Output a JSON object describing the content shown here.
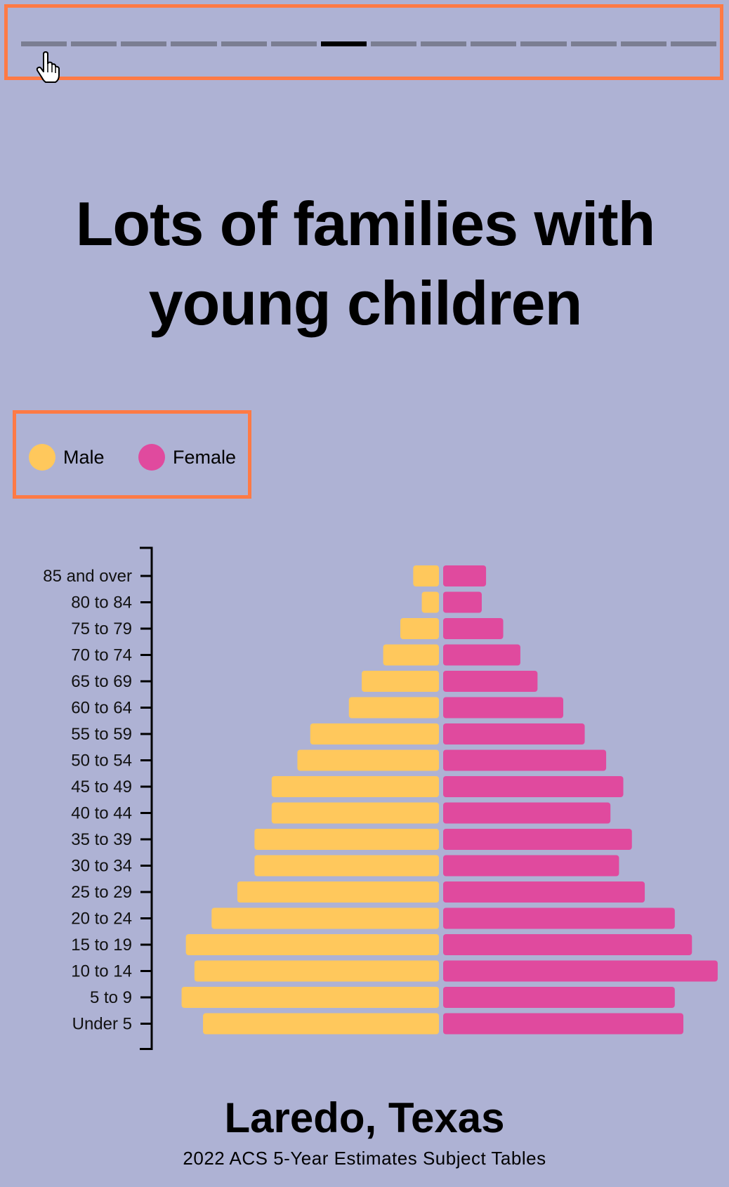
{
  "progress": {
    "total_steps": 14,
    "active_step": 7
  },
  "headline": "Lots of families with young children",
  "legend": {
    "male_label": "Male",
    "female_label": "Female",
    "male_color": "#ffc85c",
    "female_color": "#e04a9e"
  },
  "chart_data": {
    "type": "bar",
    "orientation": "horizontal-population-pyramid",
    "categories": [
      "85 and over",
      "80 to 84",
      "75 to 79",
      "70 to 74",
      "65 to 69",
      "60 to 64",
      "55 to 59",
      "50 to 54",
      "45 to 49",
      "40 to 44",
      "35 to 39",
      "30 to 34",
      "25 to 29",
      "20 to 24",
      "15 to 19",
      "10 to 14",
      "5 to 9",
      "Under 5"
    ],
    "series": [
      {
        "name": "Male",
        "color": "#ffc85c",
        "values": [
          0.6,
          0.4,
          0.9,
          1.3,
          1.8,
          2.1,
          3.0,
          3.3,
          3.9,
          3.9,
          4.3,
          4.3,
          4.7,
          5.3,
          5.9,
          5.7,
          6.0,
          5.5
        ]
      },
      {
        "name": "Female",
        "color": "#e04a9e",
        "values": [
          1.0,
          0.9,
          1.4,
          1.8,
          2.2,
          2.8,
          3.3,
          3.8,
          4.2,
          3.9,
          4.4,
          4.1,
          4.7,
          5.4,
          5.8,
          6.4,
          5.4,
          5.6
        ]
      }
    ],
    "xlim": [
      0,
      6.5
    ],
    "legend_position": "top-left",
    "grid": false
  },
  "footer": {
    "title": "Laredo, Texas",
    "source": "2022 ACS 5-Year Estimates Subject Tables"
  }
}
